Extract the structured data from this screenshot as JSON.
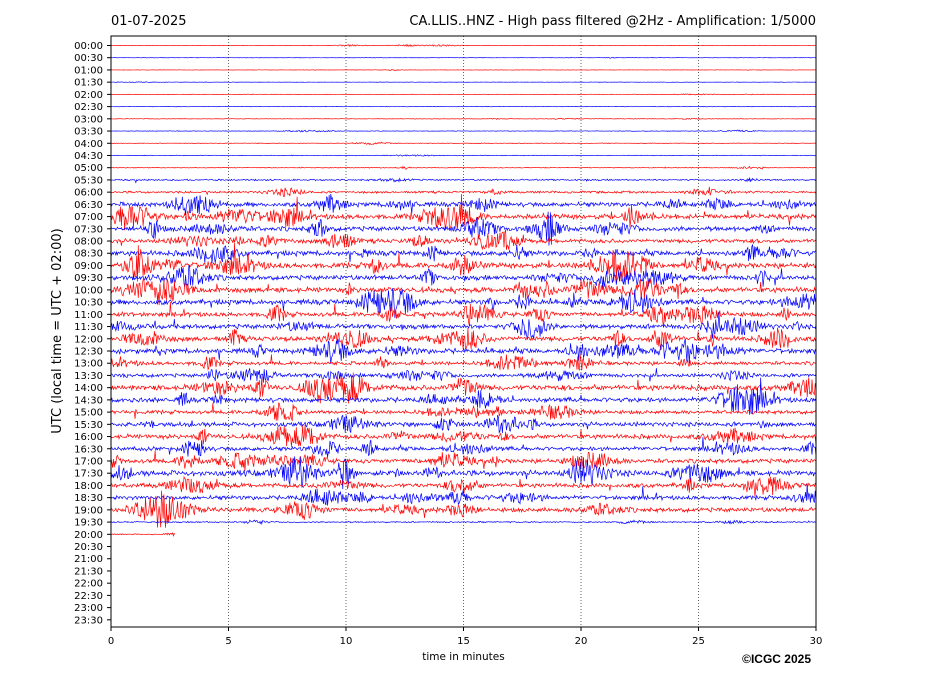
{
  "chart_data": {
    "type": "line",
    "date": "01-07-2025",
    "title": "CA.LLIS..HNZ - High pass filtered @2Hz - Amplification: 1/5000",
    "xlabel": "time in minutes",
    "ylabel": "UTC (local time = UTC + 02:00)",
    "xlim": [
      0,
      30
    ],
    "x_ticks": [
      "0",
      "5",
      "10",
      "15",
      "20",
      "25",
      "30"
    ],
    "x_gridlines": [
      5,
      10,
      15,
      20,
      25
    ],
    "grid": "vertical-dotted",
    "y_ticks": [
      "00:00",
      "00:30",
      "01:00",
      "01:30",
      "02:00",
      "02:30",
      "03:00",
      "03:30",
      "04:00",
      "04:30",
      "05:00",
      "05:30",
      "06:00",
      "06:30",
      "07:00",
      "07:30",
      "08:00",
      "08:30",
      "09:00",
      "09:30",
      "10:00",
      "10:30",
      "11:00",
      "11:30",
      "12:00",
      "12:30",
      "13:00",
      "13:30",
      "14:00",
      "14:30",
      "15:00",
      "15:30",
      "16:00",
      "16:30",
      "17:00",
      "17:30",
      "18:00",
      "18:30",
      "19:00",
      "19:30",
      "20:00",
      "20:30",
      "21:00",
      "21:30",
      "22:00",
      "22:30",
      "23:00",
      "23:30"
    ],
    "colors": [
      "#ff0000",
      "#0000ff"
    ],
    "data_end": {
      "row": "20:00",
      "minute": 2.7
    },
    "row_amplitude": [
      0.25,
      0.2,
      0.2,
      0.2,
      0.2,
      0.3,
      0.3,
      0.3,
      0.35,
      0.4,
      0.45,
      0.9,
      1.3,
      2.6,
      3.0,
      2.8,
      2.5,
      3.0,
      3.2,
      2.8,
      3.2,
      3.0,
      2.6,
      2.8,
      3.0,
      3.0,
      2.2,
      2.2,
      3.2,
      2.8,
      2.2,
      2.6,
      2.8,
      2.4,
      2.6,
      3.2,
      2.6,
      2.4,
      2.6,
      0.8,
      0.6
    ]
  },
  "copyright": "©ICGC 2025"
}
